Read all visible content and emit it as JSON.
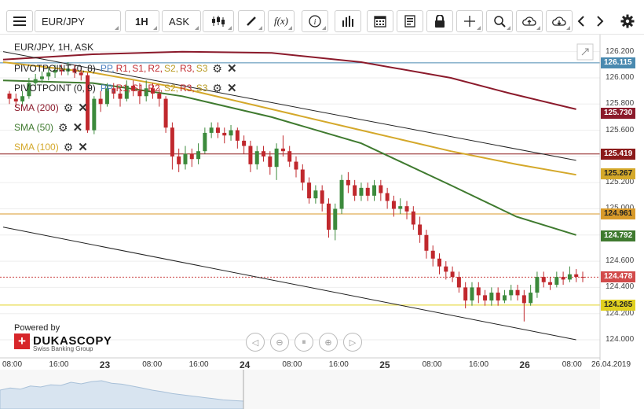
{
  "toolbar": {
    "symbol": "EUR/JPY",
    "timeframe": "1H",
    "price_type": "ASK",
    "buttons": [
      "menu-icon",
      "candle-type-icon",
      "draw-pencil-icon",
      "function-icon",
      "info-icon",
      "volume-bars-icon",
      "calendar-icon",
      "report-icon",
      "lock-icon",
      "crosshair-icon",
      "zoom-icon",
      "upload-cloud-icon",
      "download-cloud-icon",
      "chevron-left-icon",
      "chevron-right-icon",
      "gear-icon"
    ]
  },
  "legend": {
    "header": "EUR/JPY, 1H, ASK",
    "pivot1_name": "PIVOTPOINT (0, 8)",
    "pivot2_name": "PIVOTPOINT (0, 9)",
    "pp": "PP,",
    "r1": "R1,",
    "s1": "S1,",
    "r2": "R2,",
    "s2": "S2,",
    "r3": "R3,",
    "s3": "S3",
    "sma200": "SMA (200)",
    "sma50": "SMA (50)",
    "sma100": "SMA (100)"
  },
  "branding": {
    "powered_by": "Powered by",
    "brand": "DUKASCOPY",
    "sub": "Swiss Banking Group"
  },
  "colors": {
    "sma200": "#8b1a2b",
    "sma50": "#3f7a2f",
    "sma100": "#d4a82a",
    "bull": "#3c8a3c",
    "bear": "#c0282d",
    "price_badge": "#d24b4b",
    "current_price_line": "#c44",
    "resist_line": "#8b1a1a",
    "orange_line": "#d89a2a",
    "yellow_line": "#e0d020",
    "blue_line": "#4a8ab0",
    "pivot_pp": "#4a7fc0",
    "pivot_r": "#c0282d",
    "pivot_s": "#b89a20"
  },
  "chart_data": {
    "type": "candlestick",
    "symbol": "EUR/JPY",
    "ylim": [
      123.94,
      126.24
    ],
    "y_ticks": [
      "126.200",
      "126.000",
      "125.800",
      "125.600",
      "125.400",
      "125.200",
      "125.000",
      "124.800",
      "124.600",
      "124.400",
      "124.200",
      "124.000"
    ],
    "x_labels": [
      {
        "text": "08:00",
        "bold": false
      },
      {
        "text": "16:00",
        "bold": false
      },
      {
        "text": "23",
        "bold": true
      },
      {
        "text": "08:00",
        "bold": false
      },
      {
        "text": "16:00",
        "bold": false
      },
      {
        "text": "24",
        "bold": true
      },
      {
        "text": "08:00",
        "bold": false
      },
      {
        "text": "16:00",
        "bold": false
      },
      {
        "text": "25",
        "bold": true
      },
      {
        "text": "08:00",
        "bold": false
      },
      {
        "text": "16:00",
        "bold": false
      },
      {
        "text": "26",
        "bold": true
      },
      {
        "text": "08:00",
        "bold": false
      },
      {
        "text": "26.04.2019",
        "bold": false
      }
    ],
    "price_labels": [
      {
        "value": "126.115",
        "color": "#4a8ab0"
      },
      {
        "value": "125.730",
        "color": "#8b1a2b"
      },
      {
        "value": "125.419",
        "color": "#8b1a1a"
      },
      {
        "value": "125.267",
        "color": "#d4a82a"
      },
      {
        "value": "124.961",
        "color": "#d89a2a"
      },
      {
        "value": "124.792",
        "color": "#3f7a2f"
      },
      {
        "value": "124.478",
        "color": "#d24b4b"
      },
      {
        "value": "124.265",
        "color": "#e0d020"
      }
    ],
    "horizontal_lines": [
      {
        "value": 126.115,
        "color": "#4a8ab0"
      },
      {
        "value": 125.419,
        "color": "#8b1a1a"
      },
      {
        "value": 124.961,
        "color": "#d89a2a"
      },
      {
        "value": 124.265,
        "color": "#e0d020"
      },
      {
        "value": 124.478,
        "color": "#c44",
        "dashed": true
      }
    ],
    "candles": [
      [
        125.88,
        125.84,
        125.9,
        125.8
      ],
      [
        125.84,
        125.82,
        125.88,
        125.78
      ],
      [
        125.82,
        125.86,
        125.9,
        125.79
      ],
      [
        125.86,
        125.96,
        126.0,
        125.84
      ],
      [
        125.96,
        125.99,
        126.03,
        125.94
      ],
      [
        125.99,
        126.01,
        126.05,
        125.96
      ],
      [
        126.01,
        126.04,
        126.08,
        125.98
      ],
      [
        126.04,
        126.06,
        126.1,
        126.0
      ],
      [
        126.06,
        126.05,
        126.1,
        126.02
      ],
      [
        126.05,
        126.07,
        126.12,
        126.02
      ],
      [
        126.07,
        126.04,
        126.1,
        126.0
      ],
      [
        126.04,
        126.02,
        126.08,
        125.98
      ],
      [
        126.02,
        125.6,
        126.04,
        125.58
      ],
      [
        125.6,
        125.84,
        125.86,
        125.57
      ],
      [
        125.84,
        125.8,
        125.9,
        125.74
      ],
      [
        125.8,
        125.92,
        125.96,
        125.78
      ],
      [
        125.92,
        125.88,
        125.96,
        125.84
      ],
      [
        125.88,
        125.84,
        125.92,
        125.78
      ],
      [
        125.84,
        125.94,
        125.98,
        125.82
      ],
      [
        125.94,
        125.9,
        125.98,
        125.86
      ],
      [
        125.9,
        125.86,
        125.96,
        125.8
      ],
      [
        125.86,
        125.92,
        125.98,
        125.82
      ],
      [
        125.92,
        125.88,
        125.96,
        125.84
      ],
      [
        125.88,
        125.84,
        125.92,
        125.78
      ],
      [
        125.84,
        125.62,
        125.86,
        125.58
      ],
      [
        125.62,
        125.4,
        125.66,
        125.3
      ],
      [
        125.4,
        125.34,
        125.46,
        125.28
      ],
      [
        125.34,
        125.42,
        125.48,
        125.3
      ],
      [
        125.42,
        125.38,
        125.46,
        125.32
      ],
      [
        125.38,
        125.44,
        125.5,
        125.34
      ],
      [
        125.44,
        125.58,
        125.62,
        125.42
      ],
      [
        125.58,
        125.62,
        125.66,
        125.54
      ],
      [
        125.62,
        125.58,
        125.66,
        125.54
      ],
      [
        125.58,
        125.56,
        125.62,
        125.5
      ],
      [
        125.56,
        125.6,
        125.64,
        125.52
      ],
      [
        125.6,
        125.52,
        125.62,
        125.46
      ],
      [
        125.52,
        125.48,
        125.56,
        125.42
      ],
      [
        125.48,
        125.34,
        125.52,
        125.28
      ],
      [
        125.34,
        125.44,
        125.48,
        125.3
      ],
      [
        125.44,
        125.4,
        125.48,
        125.36
      ],
      [
        125.4,
        125.32,
        125.44,
        125.26
      ],
      [
        125.32,
        125.46,
        125.5,
        125.22
      ],
      [
        125.46,
        125.44,
        125.56,
        125.4
      ],
      [
        125.44,
        125.36,
        125.48,
        125.32
      ],
      [
        125.36,
        125.3,
        125.4,
        125.24
      ],
      [
        125.3,
        125.2,
        125.34,
        125.14
      ],
      [
        125.2,
        125.08,
        125.24,
        125.04
      ],
      [
        125.08,
        125.14,
        125.18,
        125.04
      ],
      [
        125.14,
        125.04,
        125.18,
        124.98
      ],
      [
        125.04,
        124.84,
        125.08,
        124.78
      ],
      [
        124.84,
        125.0,
        125.04,
        124.76
      ],
      [
        125.0,
        125.22,
        125.26,
        124.96
      ],
      [
        125.22,
        125.18,
        125.28,
        125.12
      ],
      [
        125.18,
        125.1,
        125.22,
        125.06
      ],
      [
        125.1,
        125.16,
        125.2,
        125.06
      ],
      [
        125.16,
        125.1,
        125.2,
        125.06
      ],
      [
        125.1,
        125.18,
        125.22,
        125.06
      ],
      [
        125.18,
        125.12,
        125.22,
        125.06
      ],
      [
        125.12,
        125.06,
        125.16,
        125.0
      ],
      [
        125.06,
        125.0,
        125.1,
        124.94
      ],
      [
        125.0,
        125.02,
        125.08,
        124.96
      ],
      [
        125.02,
        124.98,
        125.06,
        124.92
      ],
      [
        124.98,
        124.88,
        125.02,
        124.84
      ],
      [
        124.88,
        124.8,
        124.94,
        124.74
      ],
      [
        124.8,
        124.68,
        124.84,
        124.62
      ],
      [
        124.68,
        124.62,
        124.72,
        124.56
      ],
      [
        124.62,
        124.56,
        124.66,
        124.5
      ],
      [
        124.56,
        124.52,
        124.6,
        124.46
      ],
      [
        124.52,
        124.48,
        124.56,
        124.44
      ],
      [
        124.48,
        124.4,
        124.52,
        124.36
      ],
      [
        124.4,
        124.3,
        124.44,
        124.24
      ],
      [
        124.3,
        124.4,
        124.44,
        124.26
      ],
      [
        124.4,
        124.34,
        124.44,
        124.28
      ],
      [
        124.34,
        124.3,
        124.38,
        124.26
      ],
      [
        124.3,
        124.36,
        124.4,
        124.26
      ],
      [
        124.36,
        124.3,
        124.4,
        124.26
      ],
      [
        124.3,
        124.34,
        124.38,
        124.28
      ],
      [
        124.34,
        124.38,
        124.42,
        124.3
      ],
      [
        124.38,
        124.34,
        124.42,
        124.3
      ],
      [
        124.34,
        124.28,
        124.38,
        124.14
      ],
      [
        124.28,
        124.36,
        124.42,
        124.26
      ],
      [
        124.36,
        124.48,
        124.52,
        124.32
      ],
      [
        124.48,
        124.44,
        124.52,
        124.4
      ],
      [
        124.44,
        124.42,
        124.48,
        124.38
      ],
      [
        124.42,
        124.48,
        124.52,
        124.4
      ],
      [
        124.48,
        124.46,
        124.52,
        124.42
      ],
      [
        124.46,
        124.5,
        124.56,
        124.44
      ],
      [
        124.5,
        124.48,
        124.54,
        124.44
      ],
      [
        124.48,
        124.478,
        124.52,
        124.44
      ]
    ],
    "sma200": [
      [
        0,
        126.14
      ],
      [
        0.15,
        126.18
      ],
      [
        0.3,
        126.2
      ],
      [
        0.45,
        126.19
      ],
      [
        0.6,
        126.12
      ],
      [
        0.75,
        126.0
      ],
      [
        0.85,
        125.88
      ],
      [
        0.96,
        125.76
      ]
    ],
    "sma100": [
      [
        0,
        126.12
      ],
      [
        0.15,
        126.04
      ],
      [
        0.3,
        125.92
      ],
      [
        0.45,
        125.76
      ],
      [
        0.6,
        125.6
      ],
      [
        0.75,
        125.44
      ],
      [
        0.86,
        125.34
      ],
      [
        0.96,
        125.26
      ]
    ],
    "sma50": [
      [
        0,
        125.98
      ],
      [
        0.15,
        125.96
      ],
      [
        0.3,
        125.86
      ],
      [
        0.45,
        125.7
      ],
      [
        0.6,
        125.5
      ],
      [
        0.75,
        125.18
      ],
      [
        0.86,
        124.94
      ],
      [
        0.96,
        124.8
      ]
    ],
    "trendlines": [
      {
        "from": [
          0,
          126.2
        ],
        "to": [
          0.96,
          125.37
        ],
        "color": "#222"
      },
      {
        "from": [
          0,
          124.86
        ],
        "to": [
          0.96,
          124.0
        ],
        "color": "#222"
      }
    ]
  }
}
